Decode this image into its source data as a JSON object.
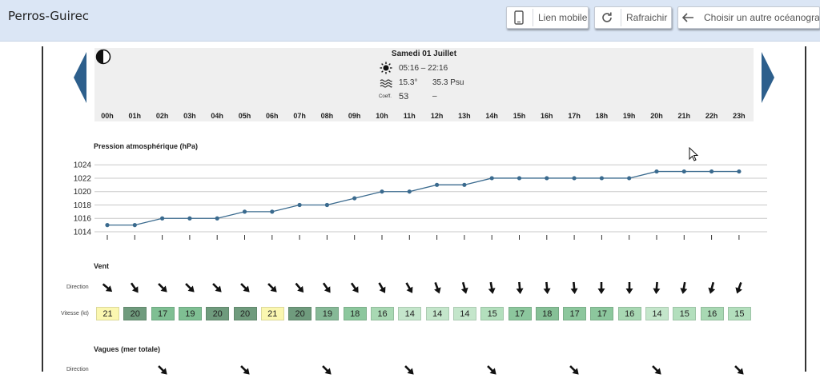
{
  "app": {
    "title": "Perros-Guirec"
  },
  "toolbar": {
    "mobile_label": "Lien mobile",
    "refresh_label": "Rafraichir",
    "choose_label": "Choisir un autre océanogramme"
  },
  "day": {
    "title": "Samedi 01 Juillet",
    "sun_times": "05:16 – 22:16",
    "water_temp": "15.3°",
    "salinity": "35.3 Psu",
    "coeff_label": "Coeff.",
    "coeff_value": "53",
    "coeff_extra": "–"
  },
  "hours": [
    "00h",
    "01h",
    "02h",
    "03h",
    "04h",
    "05h",
    "06h",
    "07h",
    "08h",
    "09h",
    "10h",
    "11h",
    "12h",
    "13h",
    "14h",
    "15h",
    "16h",
    "17h",
    "18h",
    "19h",
    "20h",
    "21h",
    "22h",
    "23h"
  ],
  "chart_data": {
    "type": "line",
    "title": "Pression atmosphérique (hPa)",
    "x": [
      "00h",
      "01h",
      "02h",
      "03h",
      "04h",
      "05h",
      "06h",
      "07h",
      "08h",
      "09h",
      "10h",
      "11h",
      "12h",
      "13h",
      "14h",
      "15h",
      "16h",
      "17h",
      "18h",
      "19h",
      "20h",
      "21h",
      "22h",
      "23h"
    ],
    "y": [
      1015,
      1015,
      1016,
      1016,
      1016,
      1017,
      1017,
      1018,
      1018,
      1019,
      1020,
      1020,
      1021,
      1021,
      1022,
      1022,
      1022,
      1022,
      1022,
      1022,
      1023,
      1023,
      1023,
      1023
    ],
    "yticks": [
      1014,
      1016,
      1018,
      1020,
      1022,
      1024
    ],
    "ylim": [
      1014,
      1024.5
    ],
    "grid": true,
    "color": "#3a6a8e"
  },
  "wind": {
    "title": "Vent",
    "direction_label": "Direction",
    "speed_label": "Vitesse (kt)",
    "directions_deg": [
      40,
      55,
      45,
      45,
      45,
      45,
      45,
      50,
      55,
      55,
      60,
      60,
      70,
      75,
      80,
      85,
      85,
      85,
      90,
      90,
      95,
      100,
      105,
      110
    ],
    "speeds": [
      "21",
      "20",
      "17",
      "19",
      "20",
      "20",
      "21",
      "20",
      "19",
      "18",
      "16",
      "14",
      "14",
      "14",
      "15",
      "17",
      "18",
      "17",
      "17",
      "16",
      "14",
      "15",
      "16",
      "15"
    ],
    "speed_colors": [
      "#fbf7b0",
      "#6f9b7d",
      "#7fbf93",
      "#7fbf93",
      "#6f9b7d",
      "#6f9b7d",
      "#fbf7b0",
      "#6f9b7d",
      "#86b997",
      "#8cc79d",
      "#a8d8b3",
      "#c4e6cb",
      "#c4e6cb",
      "#c4e6cb",
      "#b3dfbd",
      "#8cc79d",
      "#86c097",
      "#8cc79d",
      "#8cc79d",
      "#a8d8b3",
      "#c4e6cb",
      "#b3dfbd",
      "#a8d8b3",
      "#b3dfbd"
    ]
  },
  "waves": {
    "title": "Vagues (mer totale)",
    "direction_label": "Direction"
  },
  "icons": {
    "moon": "half-moon-icon",
    "sun": "sun-icon",
    "waves": "waves-icon",
    "mobile": "phone-icon",
    "refresh": "refresh-icon",
    "back": "arrow-left-icon",
    "prev": "prev-day-arrow-icon",
    "next": "next-day-arrow-icon"
  }
}
